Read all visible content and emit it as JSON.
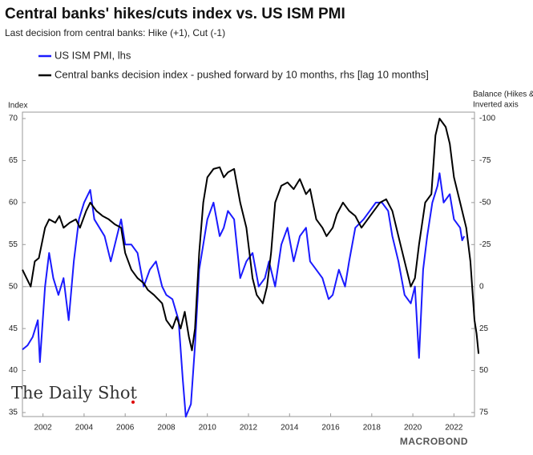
{
  "chart_data": {
    "type": "line",
    "title": "Central banks' hikes/cuts index vs. US ISM PMI",
    "subtitle": "Last decision from central banks: Hike (+1), Cut (-1)",
    "ylabel": "Index",
    "y2label": [
      "Balance (Hikes & Cuts)",
      "Inverted axis"
    ],
    "watermarks": [
      "The Daily Shot",
      "MACROBOND"
    ],
    "xlim": [
      2001,
      2023
    ],
    "xticks": [
      2002,
      2004,
      2006,
      2008,
      2010,
      2012,
      2014,
      2016,
      2018,
      2020,
      2022
    ],
    "ylim": [
      35,
      70
    ],
    "yticks": [
      35,
      40,
      45,
      50,
      55,
      60,
      65,
      70
    ],
    "y2lim": [
      75,
      -100
    ],
    "y2ticks": [
      75,
      50,
      25,
      0,
      -25,
      -50,
      -75,
      -100
    ],
    "reference_line": 50,
    "legend": "top-left",
    "series": [
      {
        "name": "US ISM PMI, lhs",
        "color": "#1a1aff",
        "x": [
          2001.0,
          2001.25,
          2001.5,
          2001.75,
          2001.85,
          2002.1,
          2002.3,
          2002.5,
          2002.75,
          2003.0,
          2003.25,
          2003.5,
          2003.75,
          2004.0,
          2004.3,
          2004.5,
          2004.75,
          2005.0,
          2005.3,
          2005.6,
          2005.8,
          2006.0,
          2006.3,
          2006.6,
          2006.9,
          2007.2,
          2007.5,
          2007.8,
          2008.0,
          2008.3,
          2008.6,
          2008.8,
          2008.95,
          2009.2,
          2009.4,
          2009.6,
          2009.8,
          2010.0,
          2010.3,
          2010.6,
          2010.8,
          2011.0,
          2011.3,
          2011.6,
          2011.9,
          2012.2,
          2012.5,
          2012.8,
          2013.0,
          2013.3,
          2013.6,
          2013.9,
          2014.2,
          2014.5,
          2014.8,
          2015.0,
          2015.3,
          2015.6,
          2015.9,
          2016.1,
          2016.4,
          2016.7,
          2016.9,
          2017.2,
          2017.6,
          2017.9,
          2018.2,
          2018.5,
          2018.8,
          2019.0,
          2019.3,
          2019.6,
          2019.9,
          2020.1,
          2020.3,
          2020.5,
          2020.7,
          2020.95,
          2021.2,
          2021.3,
          2021.5,
          2021.8,
          2022.0,
          2022.3,
          2022.4,
          2022.5
        ],
        "values": [
          42.5,
          43,
          44,
          46,
          41,
          50,
          54,
          51,
          49,
          51,
          46,
          53,
          58,
          60,
          61.5,
          58,
          57,
          56,
          53,
          56,
          58,
          55,
          55,
          54,
          50,
          52,
          53,
          50,
          49,
          48.5,
          46,
          39,
          34.5,
          36,
          43,
          52,
          55,
          58,
          60,
          56,
          57,
          59,
          58,
          51,
          53,
          54,
          50,
          51,
          53,
          50,
          55,
          57,
          53,
          56,
          57,
          53,
          52,
          51,
          48.5,
          49,
          52,
          50,
          53,
          57,
          58,
          59,
          60,
          60,
          59,
          56,
          53,
          49,
          48,
          50,
          41.5,
          52,
          56,
          60,
          62,
          63.5,
          60,
          61,
          58,
          57,
          55.5,
          56
        ]
      },
      {
        "name": "Central banks decision index -  pushed forward by 10 months, rhs [lag 10 months]",
        "color": "#000000",
        "axis": "y2",
        "x": [
          2001.0,
          2001.2,
          2001.4,
          2001.6,
          2001.8,
          2002.1,
          2002.3,
          2002.6,
          2002.8,
          2003.0,
          2003.3,
          2003.6,
          2003.8,
          2004.1,
          2004.3,
          2004.6,
          2004.9,
          2005.2,
          2005.5,
          2005.8,
          2006.0,
          2006.3,
          2006.6,
          2006.9,
          2007.1,
          2007.4,
          2007.8,
          2008.0,
          2008.3,
          2008.5,
          2008.7,
          2008.9,
          2009.1,
          2009.25,
          2009.4,
          2009.6,
          2009.8,
          2010.0,
          2010.3,
          2010.6,
          2010.8,
          2011.0,
          2011.3,
          2011.6,
          2011.9,
          2012.2,
          2012.4,
          2012.7,
          2012.9,
          2013.1,
          2013.3,
          2013.6,
          2013.9,
          2014.2,
          2014.5,
          2014.8,
          2015.0,
          2015.3,
          2015.6,
          2015.8,
          2016.1,
          2016.3,
          2016.6,
          2016.9,
          2017.2,
          2017.5,
          2017.8,
          2018.1,
          2018.4,
          2018.7,
          2019.0,
          2019.3,
          2019.6,
          2019.9,
          2020.1,
          2020.3,
          2020.6,
          2020.9,
          2021.1,
          2021.3,
          2021.6,
          2021.8,
          2022.0,
          2022.3,
          2022.6,
          2022.8,
          2023.0,
          2023.1,
          2023.2
        ],
        "values": [
          -10,
          -5,
          0,
          -15,
          -17,
          -35,
          -40,
          -38,
          -42,
          -35,
          -38,
          -40,
          -35,
          -45,
          -50,
          -45,
          -42,
          -40,
          -37,
          -35,
          -20,
          -10,
          -5,
          -2,
          2,
          5,
          10,
          20,
          25,
          18,
          25,
          15,
          30,
          38,
          25,
          -20,
          -50,
          -65,
          -70,
          -71,
          -65,
          -68,
          -70,
          -50,
          -35,
          -5,
          5,
          10,
          0,
          -20,
          -50,
          -60,
          -62,
          -58,
          -64,
          -55,
          -58,
          -40,
          -35,
          -30,
          -35,
          -43,
          -50,
          -45,
          -42,
          -35,
          -40,
          -45,
          -50,
          -52,
          -45,
          -30,
          -15,
          0,
          -5,
          -25,
          -50,
          -55,
          -90,
          -100,
          -95,
          -85,
          -65,
          -50,
          -35,
          -15,
          20,
          28,
          40
        ]
      }
    ]
  }
}
